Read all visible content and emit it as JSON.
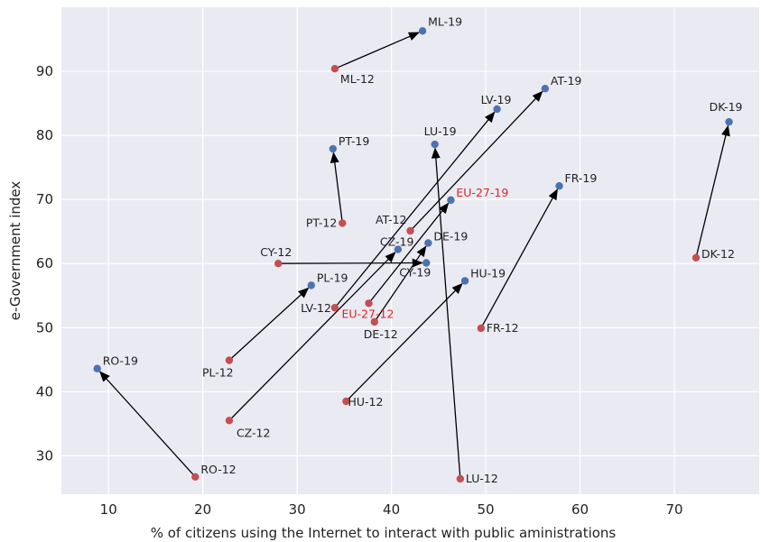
{
  "chart_data": {
    "type": "scatter",
    "xlabel": "% of citizens using the Internet to interact with public aministrations",
    "ylabel": "e-Government index",
    "xlim": [
      5,
      79
    ],
    "ylim": [
      24,
      100
    ],
    "xticks": [
      10,
      20,
      30,
      40,
      50,
      60,
      70
    ],
    "yticks": [
      30,
      40,
      50,
      60,
      70,
      80,
      90
    ],
    "grid": true,
    "colors": {
      "start": "#c44e52",
      "end": "#4c72b0",
      "highlight_label": "#d62728",
      "background": "#eaeaf2",
      "arrow": "#000000"
    },
    "points": [
      {
        "label": "ML-12",
        "x": 34.0,
        "y": 90.4,
        "series": "2012"
      },
      {
        "label": "ML-19",
        "x": 43.3,
        "y": 96.3,
        "series": "2019"
      },
      {
        "label": "AT-12",
        "x": 42.0,
        "y": 65.1,
        "series": "2012"
      },
      {
        "label": "AT-19",
        "x": 56.3,
        "y": 87.3,
        "series": "2019"
      },
      {
        "label": "LV-12",
        "x": 34.0,
        "y": 53.1,
        "series": "2012"
      },
      {
        "label": "LV-19",
        "x": 51.2,
        "y": 84.1,
        "series": "2019"
      },
      {
        "label": "DK-12",
        "x": 72.3,
        "y": 60.9,
        "series": "2012"
      },
      {
        "label": "DK-19",
        "x": 75.8,
        "y": 82.1,
        "series": "2019"
      },
      {
        "label": "PT-12",
        "x": 34.8,
        "y": 66.3,
        "series": "2012"
      },
      {
        "label": "PT-19",
        "x": 33.8,
        "y": 77.9,
        "series": "2019"
      },
      {
        "label": "LU-12",
        "x": 47.3,
        "y": 26.4,
        "series": "2012"
      },
      {
        "label": "LU-19",
        "x": 44.6,
        "y": 78.6,
        "series": "2019"
      },
      {
        "label": "FR-12",
        "x": 49.5,
        "y": 49.9,
        "series": "2012"
      },
      {
        "label": "FR-19",
        "x": 57.8,
        "y": 72.1,
        "series": "2019"
      },
      {
        "label": "EU-27-12",
        "x": 37.6,
        "y": 53.8,
        "series": "2012",
        "highlight": true
      },
      {
        "label": "EU-27-19",
        "x": 46.3,
        "y": 69.9,
        "series": "2019",
        "highlight": true
      },
      {
        "label": "CY-12",
        "x": 28.0,
        "y": 60.0,
        "series": "2012"
      },
      {
        "label": "CY-19",
        "x": 43.7,
        "y": 60.1,
        "series": "2019"
      },
      {
        "label": "CZ-12",
        "x": 22.8,
        "y": 35.5,
        "series": "2012"
      },
      {
        "label": "CZ-19",
        "x": 40.7,
        "y": 62.2,
        "series": "2019"
      },
      {
        "label": "DE-12",
        "x": 38.2,
        "y": 50.9,
        "series": "2012"
      },
      {
        "label": "DE-19",
        "x": 43.9,
        "y": 63.2,
        "series": "2019"
      },
      {
        "label": "PL-12",
        "x": 22.8,
        "y": 44.9,
        "series": "2012"
      },
      {
        "label": "PL-19",
        "x": 31.5,
        "y": 56.6,
        "series": "2019"
      },
      {
        "label": "HU-12",
        "x": 35.2,
        "y": 38.5,
        "series": "2012"
      },
      {
        "label": "HU-19",
        "x": 47.8,
        "y": 57.3,
        "series": "2019"
      },
      {
        "label": "RO-12",
        "x": 19.2,
        "y": 26.7,
        "series": "2012"
      },
      {
        "label": "RO-19",
        "x": 8.8,
        "y": 43.6,
        "series": "2019"
      }
    ],
    "arrows": [
      {
        "from": "ML-12",
        "to": "ML-19"
      },
      {
        "from": "AT-12",
        "to": "AT-19"
      },
      {
        "from": "LV-12",
        "to": "LV-19"
      },
      {
        "from": "DK-12",
        "to": "DK-19"
      },
      {
        "from": "PT-12",
        "to": "PT-19"
      },
      {
        "from": "LU-12",
        "to": "LU-19"
      },
      {
        "from": "FR-12",
        "to": "FR-19"
      },
      {
        "from": "EU-27-12",
        "to": "EU-27-19"
      },
      {
        "from": "CY-12",
        "to": "CY-19"
      },
      {
        "from": "CZ-12",
        "to": "CZ-19"
      },
      {
        "from": "DE-12",
        "to": "DE-19"
      },
      {
        "from": "PL-12",
        "to": "PL-19"
      },
      {
        "from": "HU-12",
        "to": "HU-19"
      },
      {
        "from": "RO-12",
        "to": "RO-19"
      }
    ]
  }
}
